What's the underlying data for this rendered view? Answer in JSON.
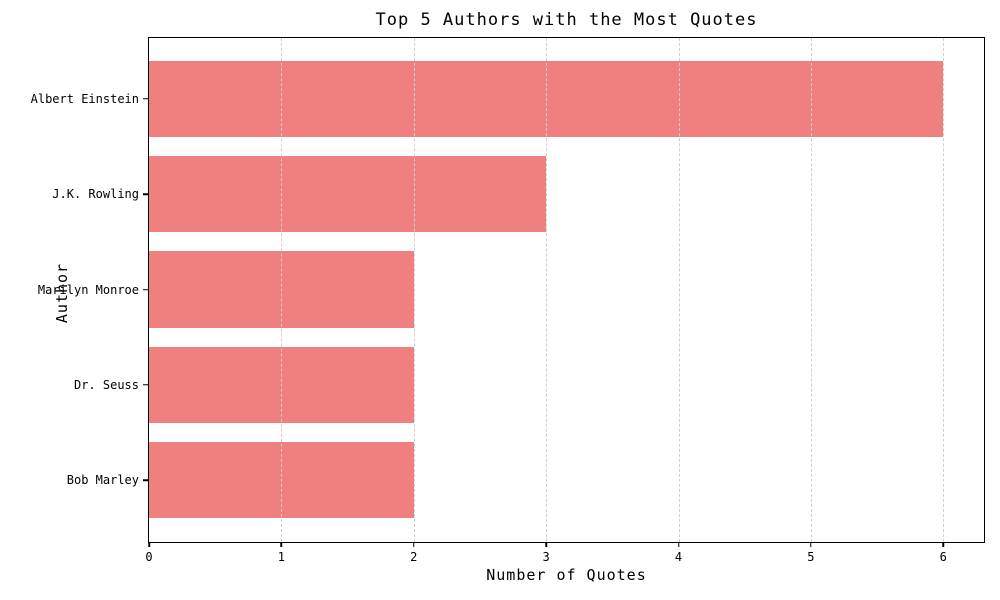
{
  "chart_data": {
    "type": "bar",
    "orientation": "horizontal",
    "title": "Top 5 Authors with the Most Quotes",
    "xlabel": "Number of Quotes",
    "ylabel": "Author",
    "categories": [
      "Albert Einstein",
      "J.K. Rowling",
      "Marilyn Monroe",
      "Dr. Seuss",
      "Bob Marley"
    ],
    "values": [
      6,
      3,
      2,
      2,
      2
    ],
    "xlim": [
      0,
      6.3
    ],
    "xticks": [
      0,
      1,
      2,
      3,
      4,
      5,
      6
    ],
    "bar_height_fraction": 0.8,
    "grid": "vertical-dashed-on-top",
    "legend_position": "none",
    "colors": {
      "bar": "#f08080",
      "gridline": "#cfcfcf",
      "spine": "#000000",
      "text": "#000000",
      "background": "#ffffff"
    }
  }
}
